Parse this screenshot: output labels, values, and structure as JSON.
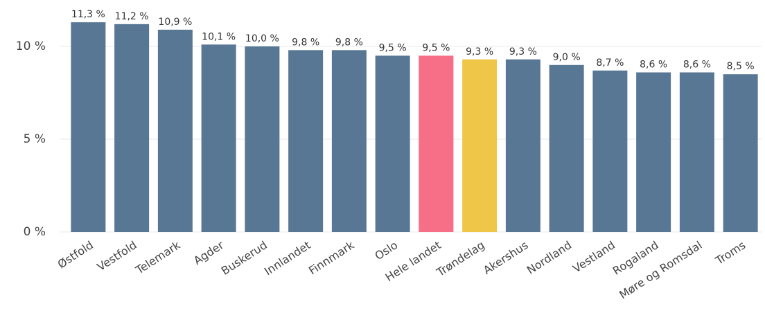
{
  "chart_data": {
    "type": "bar",
    "categories": [
      "Østfold",
      "Vestfold",
      "Telemark",
      "Agder",
      "Buskerud",
      "Innlandet",
      "Finnmark",
      "Oslo",
      "Hele landet",
      "Trøndelag",
      "Akershus",
      "Nordland",
      "Vestland",
      "Rogaland",
      "Møre og Romsdal",
      "Troms"
    ],
    "values": [
      11.3,
      11.2,
      10.9,
      10.1,
      10.0,
      9.8,
      9.8,
      9.5,
      9.5,
      9.3,
      9.3,
      9.0,
      8.7,
      8.6,
      8.6,
      8.5
    ],
    "value_labels": [
      "11,3 %",
      "11,2 %",
      "10,9 %",
      "10,1 %",
      "10,0 %",
      "9,8 %",
      "9,8 %",
      "9,5 %",
      "9,5 %",
      "9,3 %",
      "9,3 %",
      "9,0 %",
      "8,7 %",
      "8,6 %",
      "8,6 %",
      "8,5 %"
    ],
    "colors": [
      "#587795",
      "#587795",
      "#587795",
      "#587795",
      "#587795",
      "#587795",
      "#587795",
      "#587795",
      "#f76f86",
      "#f0c649",
      "#587795",
      "#587795",
      "#587795",
      "#587795",
      "#587795",
      "#587795"
    ],
    "ylim": [
      0,
      12
    ],
    "yticks": [
      {
        "value": 0,
        "label": "0 %"
      },
      {
        "value": 5,
        "label": "5 %"
      },
      {
        "value": 10,
        "label": "10 %"
      }
    ],
    "grid": true
  }
}
